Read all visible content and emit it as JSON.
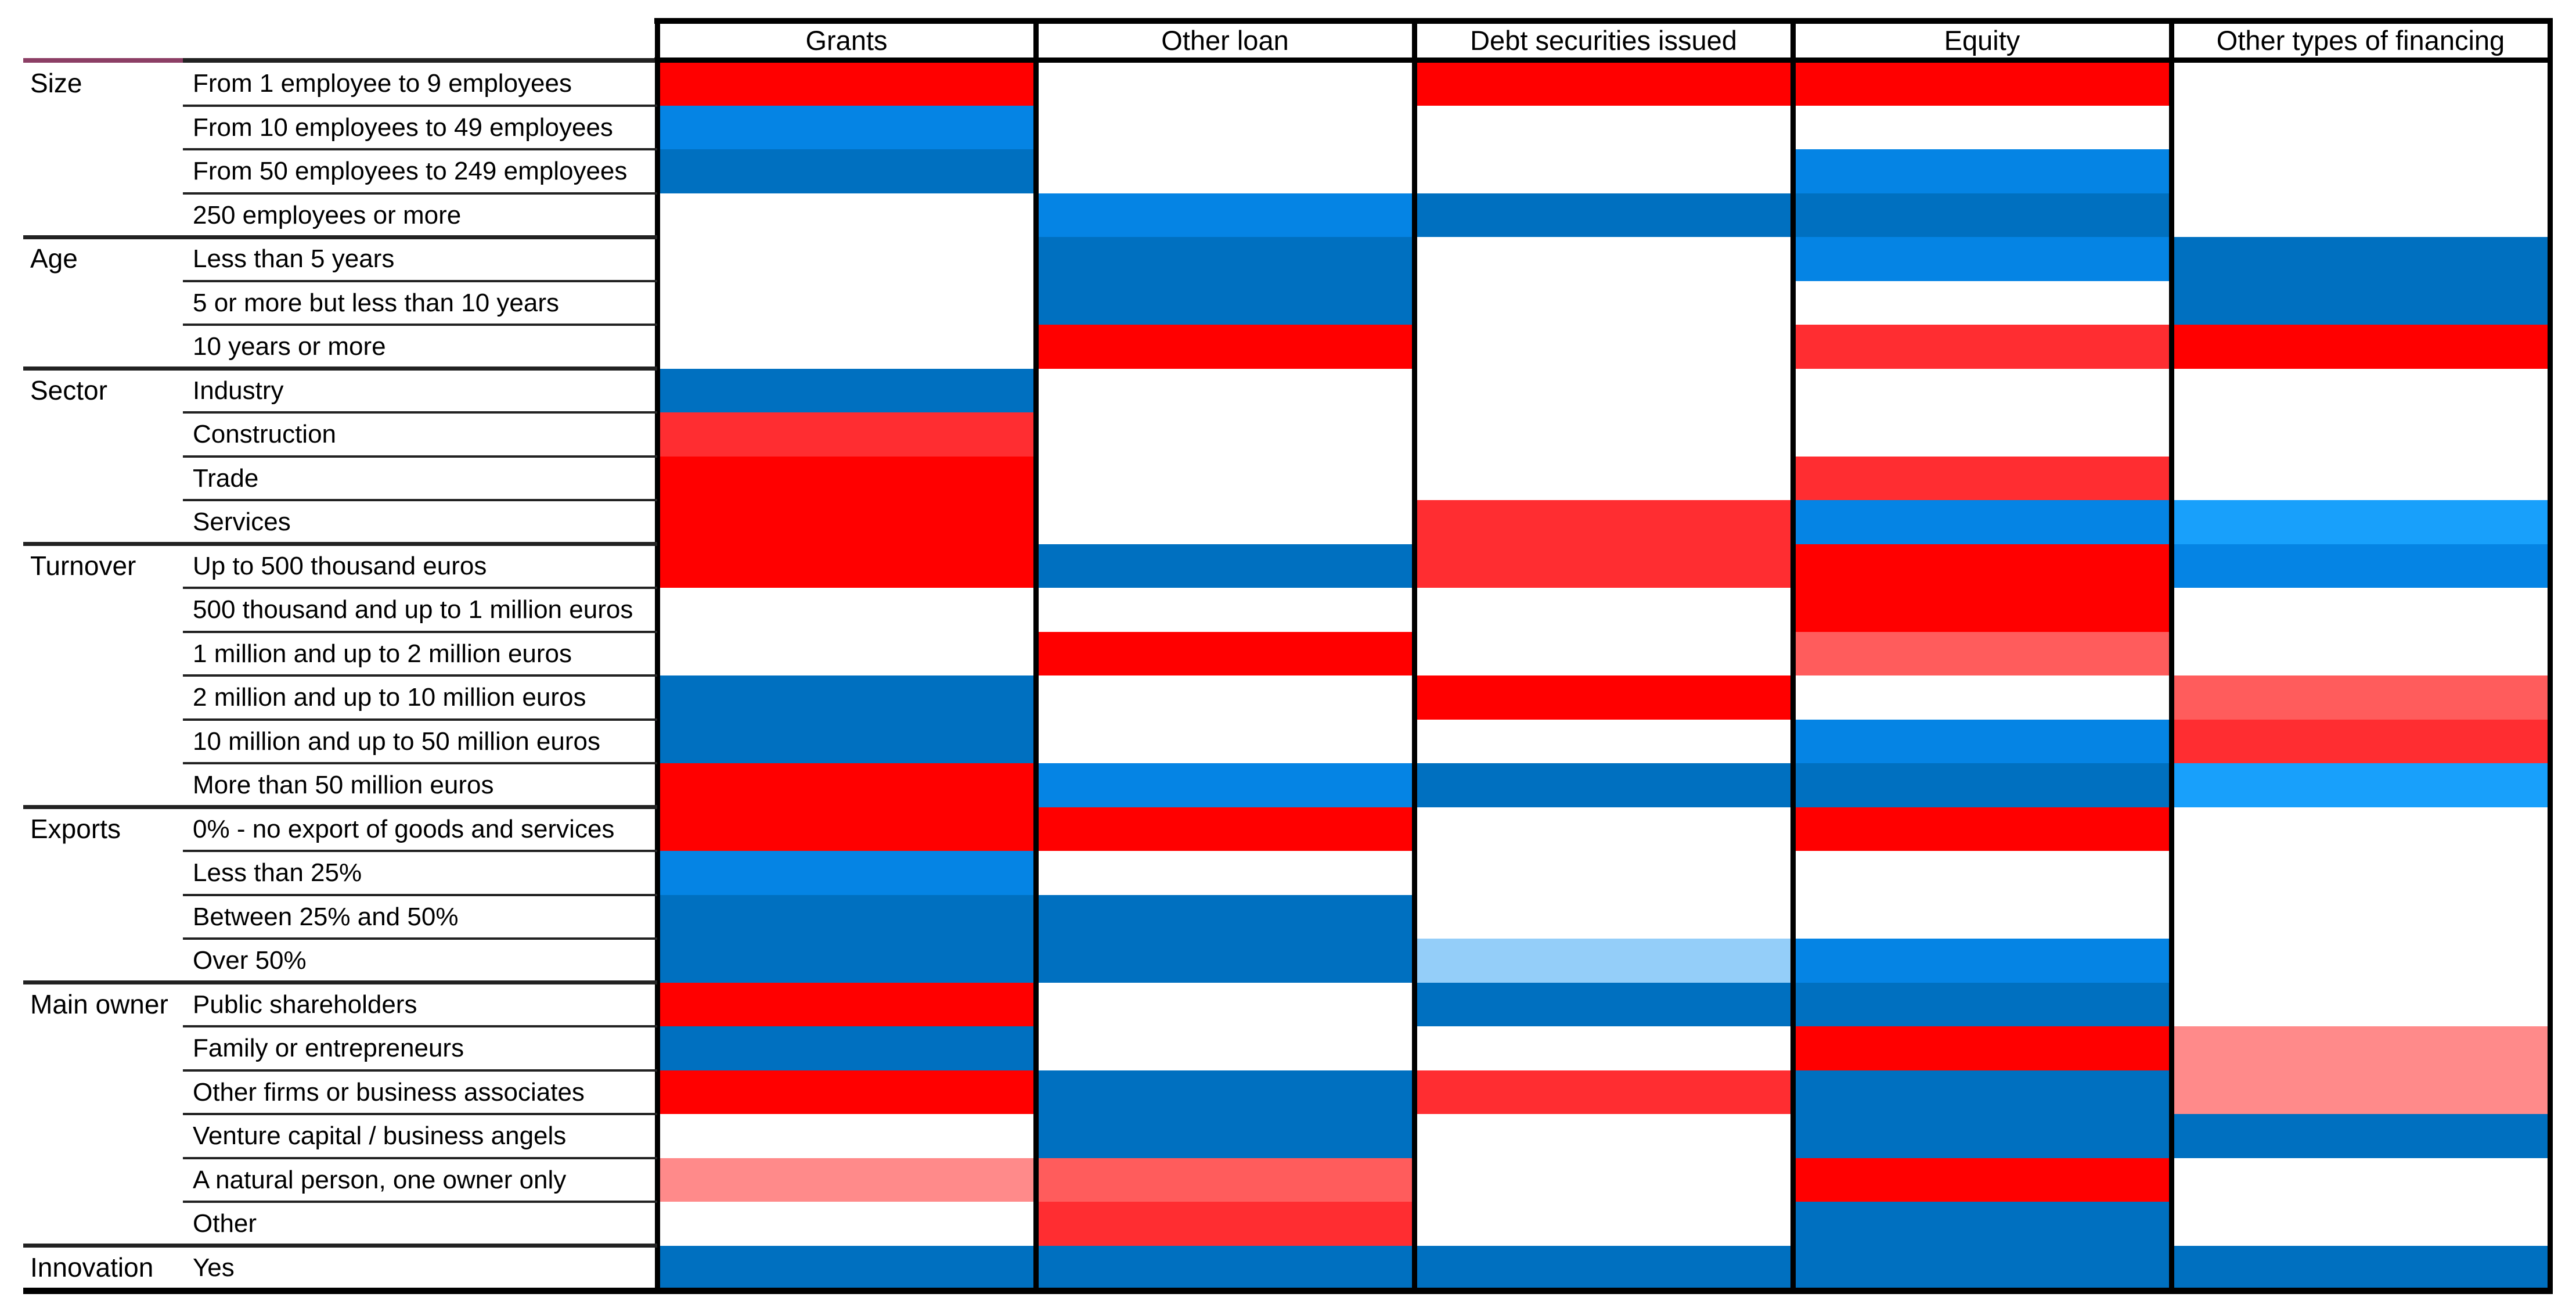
{
  "chart_data": {
    "type": "heatmap",
    "title": "",
    "columns": [
      "Grants",
      "Other loan",
      "Debt securities issued",
      "Equity",
      "Other types of financing"
    ],
    "row_groups": [
      {
        "label": "Size",
        "rows": [
          {
            "label": "From 1 employee to 9 employees",
            "cells": [
              "PR",
              "W",
              "PR",
              "PR",
              "W"
            ]
          },
          {
            "label": "From 10 employees to 49 employees",
            "cells": [
              "BB",
              "W",
              "W",
              "W",
              "W"
            ]
          },
          {
            "label": "From 50 employees to 249 employees",
            "cells": [
              "DB",
              "W",
              "W",
              "BB",
              "W"
            ]
          },
          {
            "label": "250 employees or more",
            "cells": [
              "W",
              "BB",
              "DB",
              "DB",
              "W"
            ]
          }
        ]
      },
      {
        "label": "Age",
        "rows": [
          {
            "label": "Less than 5 years",
            "cells": [
              "W",
              "DB",
              "W",
              "BB",
              "DB"
            ]
          },
          {
            "label": "5 or more but less than 10 years",
            "cells": [
              "W",
              "DB",
              "W",
              "W",
              "DB"
            ]
          },
          {
            "label": "10 years or more",
            "cells": [
              "W",
              "PR",
              "W",
              "MR",
              "PR"
            ]
          }
        ]
      },
      {
        "label": "Sector",
        "rows": [
          {
            "label": "Industry",
            "cells": [
              "DB",
              "W",
              "W",
              "W",
              "W"
            ]
          },
          {
            "label": "Construction",
            "cells": [
              "MR",
              "W",
              "W",
              "W",
              "W"
            ]
          },
          {
            "label": "Trade",
            "cells": [
              "PR",
              "W",
              "W",
              "MR",
              "W"
            ]
          },
          {
            "label": "Services",
            "cells": [
              "PR",
              "W",
              "MR",
              "BB",
              "LB"
            ]
          }
        ]
      },
      {
        "label": "Turnover",
        "rows": [
          {
            "label": "Up to 500 thousand euros",
            "cells": [
              "PR",
              "DB",
              "MR",
              "PR",
              "BB"
            ]
          },
          {
            "label": "500 thousand and up to 1 million euros",
            "cells": [
              "W",
              "W",
              "W",
              "PR",
              "W"
            ]
          },
          {
            "label": "1 million and up to 2 million euros",
            "cells": [
              "W",
              "PR",
              "W",
              "SR",
              "W"
            ]
          },
          {
            "label": "2 million and up to 10 million euros",
            "cells": [
              "DB",
              "W",
              "PR",
              "W",
              "SR"
            ]
          },
          {
            "label": "10 million and up to 50 million euros",
            "cells": [
              "DB",
              "W",
              "W",
              "BB",
              "MR"
            ]
          },
          {
            "label": "More than 50 million euros",
            "cells": [
              "PR",
              "BB",
              "DB",
              "DB",
              "LB"
            ]
          }
        ]
      },
      {
        "label": "Exports",
        "rows": [
          {
            "label": "0% - no export of goods and services",
            "cells": [
              "PR",
              "PR",
              "W",
              "PR",
              "W"
            ]
          },
          {
            "label": "Less than 25%",
            "cells": [
              "BB",
              "W",
              "W",
              "W",
              "W"
            ]
          },
          {
            "label": "Between 25% and 50%",
            "cells": [
              "DB",
              "DB",
              "W",
              "W",
              "W"
            ]
          },
          {
            "label": "Over 50%",
            "cells": [
              "DB",
              "DB",
              "PB",
              "BB",
              "W"
            ]
          }
        ]
      },
      {
        "label": "Main owner",
        "rows": [
          {
            "label": "Public shareholders",
            "cells": [
              "PR",
              "W",
              "DB",
              "DB",
              "W"
            ]
          },
          {
            "label": "Family or entrepreneurs",
            "cells": [
              "DB",
              "W",
              "W",
              "PR",
              "LR"
            ]
          },
          {
            "label": "Other firms or business associates",
            "cells": [
              "PR",
              "DB",
              "MR",
              "DB",
              "LR"
            ]
          },
          {
            "label": "Venture capital / business angels",
            "cells": [
              "W",
              "DB",
              "W",
              "DB",
              "DB"
            ]
          },
          {
            "label": "A natural person, one owner only",
            "cells": [
              "LR",
              "SR",
              "W",
              "PR",
              "W"
            ]
          },
          {
            "label": "Other",
            "cells": [
              "W",
              "MR",
              "W",
              "DB",
              "W"
            ]
          }
        ]
      },
      {
        "label": "Innovation",
        "rows": [
          {
            "label": "Yes",
            "cells": [
              "DB",
              "DB",
              "DB",
              "DB",
              "DB"
            ]
          }
        ]
      }
    ],
    "palette": {
      "PR": "#FF0000",
      "MR": "#FF2D31",
      "SR": "#FF5C5C",
      "LR": "#FF8A8A",
      "DB": "#0070C0",
      "BB": "#0584E4",
      "LB": "#18A0FB",
      "PB": "#94CEF9",
      "W": "#FFFFFF"
    },
    "layout_hints": {
      "grid": "off",
      "legend": "none",
      "cell_border": "none inside columns; thick black borders around each data column"
    }
  },
  "style_colors": {
    "grid_border": "#000000",
    "label_rule_dark": "#222222",
    "label_rule_accent": "#8C3E65",
    "background": "#FFFFFF"
  }
}
